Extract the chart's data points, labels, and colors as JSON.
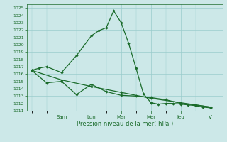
{
  "title": "Pression niveau de la mer( hPa )",
  "background_color": "#cce8e8",
  "grid_color": "#99cccc",
  "line_color": "#1a6b2a",
  "ylim": [
    1011,
    1025.5
  ],
  "yticks": [
    1011,
    1012,
    1013,
    1014,
    1015,
    1016,
    1017,
    1018,
    1019,
    1020,
    1021,
    1022,
    1023,
    1024,
    1025
  ],
  "x_tick_positions": [
    2,
    4,
    6,
    8,
    10,
    12
  ],
  "x_labels": [
    "Sam",
    "Lun",
    "Mar",
    "Mer",
    "Jeu",
    "V"
  ],
  "series1_x": [
    0,
    0.5,
    1.0,
    2.0,
    3.0,
    4.0,
    4.5,
    5.0,
    5.5,
    6.0,
    6.5,
    7.0,
    7.5,
    8.0,
    8.5,
    9.0,
    9.5,
    10.0,
    10.5,
    11.0,
    11.5,
    12.0
  ],
  "series1_y": [
    1016.5,
    1016.8,
    1017.0,
    1016.2,
    1018.5,
    1021.2,
    1021.9,
    1022.3,
    1024.6,
    1023.0,
    1020.2,
    1016.8,
    1013.3,
    1012.1,
    1011.9,
    1012.0,
    1012.0,
    1011.9,
    1011.8,
    1011.7,
    1011.5,
    1011.4
  ],
  "series2_x": [
    0,
    1.0,
    2.0,
    3.0,
    4.0,
    5.0,
    6.0,
    7.0,
    8.0,
    9.0,
    10.0,
    11.0,
    12.0
  ],
  "series2_y": [
    1016.5,
    1014.8,
    1015.0,
    1013.2,
    1014.6,
    1013.6,
    1013.1,
    1013.0,
    1012.8,
    1012.5,
    1012.0,
    1011.8,
    1011.5
  ],
  "series3_x": [
    0,
    2.0,
    4.0,
    6.0,
    8.0,
    10.0,
    12.0
  ],
  "series3_y": [
    1016.5,
    1015.2,
    1014.3,
    1013.5,
    1012.7,
    1012.1,
    1011.5
  ]
}
